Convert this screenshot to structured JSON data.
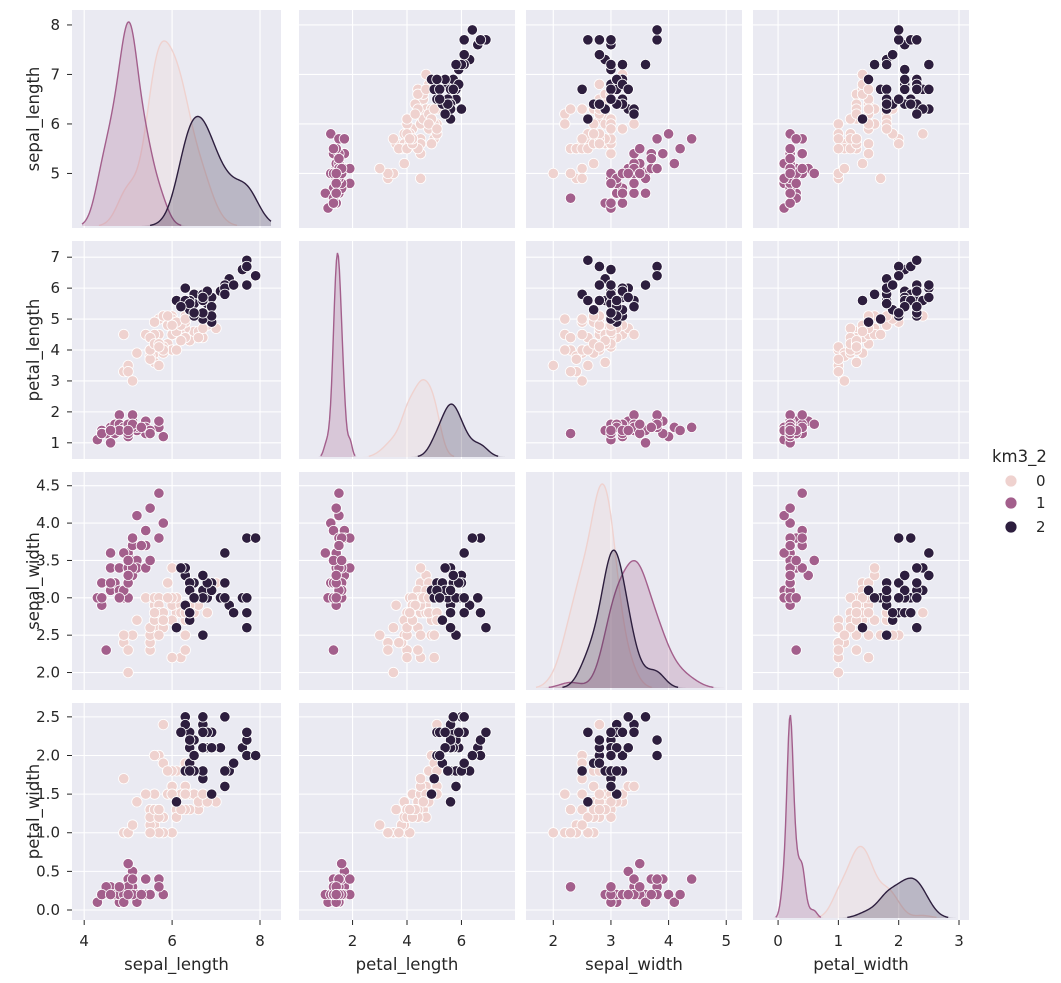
{
  "chart_data": {
    "type": "scatter",
    "kind": "pairplot",
    "variables": [
      "sepal_length",
      "petal_length",
      "sepal_width",
      "petal_width"
    ],
    "diag_kind": "kde",
    "grid": true,
    "legend": {
      "title": "km3_2",
      "placement": "right",
      "entries": [
        {
          "label": "0",
          "color": "#efd2cf"
        },
        {
          "label": "1",
          "color": "#a35f8c"
        },
        {
          "label": "2",
          "color": "#2d1e3e"
        }
      ]
    },
    "axes": {
      "sepal_length": {
        "label": "sepal_length",
        "lim": [
          3.95,
          8.25
        ],
        "ticks": [
          "4",
          "6",
          "8"
        ],
        "ylim": [
          4.1,
          8.1
        ],
        "yticks": [
          "5",
          "6",
          "7",
          "8"
        ]
      },
      "petal_length": {
        "label": "petal_length",
        "lim": [
          0.4,
          7.6
        ],
        "ticks": [
          "2",
          "4",
          "6"
        ],
        "ylim": [
          0.8,
          7.2
        ],
        "yticks": [
          "1",
          "2",
          "3",
          "4",
          "5",
          "6",
          "7"
        ]
      },
      "sepal_width": {
        "label": "sepal_width",
        "lim": [
          1.7,
          5.1
        ],
        "ticks": [
          "2",
          "3",
          "4",
          "5"
        ],
        "ylim": [
          1.9,
          4.55
        ],
        "yticks": [
          "2.0",
          "2.5",
          "3.0",
          "3.5",
          "4.0",
          "4.5"
        ]
      },
      "petal_width": {
        "label": "petal_width",
        "lim": [
          -0.25,
          3.0
        ],
        "ticks": [
          "0",
          "1",
          "2",
          "3"
        ],
        "ylim": [
          0.0,
          2.55
        ],
        "yticks": [
          "0.0",
          "0.5",
          "1.0",
          "1.5",
          "2.0",
          "2.5"
        ]
      }
    },
    "series": [
      {
        "name": "0",
        "columns": [
          "sepal_length",
          "petal_length",
          "sepal_width",
          "petal_width"
        ],
        "points": [
          [
            7.0,
            4.7,
            3.2,
            1.4
          ],
          [
            6.4,
            4.5,
            3.2,
            1.5
          ],
          [
            5.5,
            4.0,
            2.3,
            1.3
          ],
          [
            6.5,
            4.6,
            2.8,
            1.5
          ],
          [
            5.7,
            4.5,
            2.8,
            1.3
          ],
          [
            6.3,
            4.7,
            3.3,
            1.6
          ],
          [
            4.9,
            3.3,
            2.4,
            1.0
          ],
          [
            6.6,
            4.6,
            2.9,
            1.3
          ],
          [
            5.2,
            3.9,
            2.7,
            1.4
          ],
          [
            5.0,
            3.5,
            2.0,
            1.0
          ],
          [
            5.9,
            4.2,
            3.0,
            1.5
          ],
          [
            6.0,
            4.0,
            2.2,
            1.0
          ],
          [
            6.1,
            4.7,
            2.9,
            1.4
          ],
          [
            5.6,
            3.6,
            2.9,
            1.3
          ],
          [
            6.7,
            4.4,
            3.1,
            1.4
          ],
          [
            5.6,
            4.5,
            3.0,
            1.5
          ],
          [
            5.8,
            4.1,
            2.7,
            1.0
          ],
          [
            6.2,
            4.5,
            2.2,
            1.5
          ],
          [
            5.6,
            3.9,
            2.5,
            1.1
          ],
          [
            5.9,
            4.8,
            3.2,
            1.8
          ],
          [
            6.1,
            4.0,
            2.8,
            1.3
          ],
          [
            6.3,
            4.9,
            2.5,
            1.5
          ],
          [
            6.1,
            4.7,
            2.8,
            1.2
          ],
          [
            6.4,
            4.3,
            2.9,
            1.3
          ],
          [
            6.6,
            4.4,
            3.0,
            1.4
          ],
          [
            6.8,
            4.8,
            2.8,
            1.4
          ],
          [
            6.7,
            5.0,
            3.0,
            1.7
          ],
          [
            6.0,
            4.5,
            2.9,
            1.5
          ],
          [
            5.7,
            3.5,
            2.6,
            1.0
          ],
          [
            5.5,
            3.8,
            2.4,
            1.1
          ],
          [
            5.5,
            3.7,
            2.4,
            1.0
          ],
          [
            5.8,
            3.9,
            2.7,
            1.2
          ],
          [
            6.0,
            5.1,
            2.7,
            1.6
          ],
          [
            5.4,
            4.5,
            3.0,
            1.5
          ],
          [
            6.0,
            4.5,
            3.4,
            1.6
          ],
          [
            6.7,
            4.7,
            3.1,
            1.5
          ],
          [
            6.3,
            4.4,
            2.3,
            1.3
          ],
          [
            5.6,
            4.1,
            3.0,
            1.3
          ],
          [
            5.5,
            4.0,
            2.5,
            1.3
          ],
          [
            5.5,
            4.4,
            2.6,
            1.2
          ],
          [
            6.1,
            4.6,
            3.0,
            1.4
          ],
          [
            5.8,
            4.0,
            2.6,
            1.2
          ],
          [
            5.0,
            3.3,
            2.3,
            1.0
          ],
          [
            5.6,
            4.2,
            2.7,
            1.3
          ],
          [
            5.7,
            4.2,
            3.0,
            1.2
          ],
          [
            5.7,
            4.2,
            2.9,
            1.3
          ],
          [
            6.2,
            4.3,
            2.9,
            1.3
          ],
          [
            5.1,
            3.0,
            2.5,
            1.1
          ],
          [
            5.7,
            4.1,
            2.8,
            1.3
          ],
          [
            5.8,
            5.1,
            2.7,
            1.9
          ],
          [
            4.9,
            4.5,
            2.5,
            1.7
          ],
          [
            5.7,
            5.0,
            2.5,
            2.0
          ],
          [
            5.8,
            5.1,
            2.8,
            2.4
          ],
          [
            6.0,
            5.0,
            2.2,
            1.5
          ],
          [
            5.6,
            4.9,
            2.8,
            2.0
          ],
          [
            6.3,
            4.9,
            2.7,
            1.8
          ],
          [
            6.2,
            4.8,
            2.8,
            1.8
          ],
          [
            6.1,
            4.9,
            3.0,
            1.8
          ],
          [
            6.3,
            5.1,
            2.8,
            1.5
          ],
          [
            6.0,
            4.8,
            3.0,
            1.8
          ],
          [
            5.8,
            5.1,
            2.7,
            1.9
          ],
          [
            6.3,
            5.0,
            2.5,
            1.9
          ],
          [
            5.9,
            5.1,
            3.0,
            1.8
          ]
        ]
      },
      {
        "name": "1",
        "columns": [
          "sepal_length",
          "petal_length",
          "sepal_width",
          "petal_width"
        ],
        "points": [
          [
            5.1,
            1.4,
            3.5,
            0.2
          ],
          [
            4.9,
            1.4,
            3.0,
            0.2
          ],
          [
            4.7,
            1.3,
            3.2,
            0.2
          ],
          [
            4.6,
            1.5,
            3.1,
            0.2
          ],
          [
            5.0,
            1.4,
            3.6,
            0.2
          ],
          [
            5.4,
            1.7,
            3.9,
            0.4
          ],
          [
            4.6,
            1.4,
            3.4,
            0.3
          ],
          [
            5.0,
            1.5,
            3.4,
            0.2
          ],
          [
            4.4,
            1.4,
            2.9,
            0.2
          ],
          [
            4.9,
            1.5,
            3.1,
            0.1
          ],
          [
            5.4,
            1.5,
            3.7,
            0.2
          ],
          [
            4.8,
            1.6,
            3.4,
            0.2
          ],
          [
            4.8,
            1.4,
            3.0,
            0.1
          ],
          [
            4.3,
            1.1,
            3.0,
            0.1
          ],
          [
            5.8,
            1.2,
            4.0,
            0.2
          ],
          [
            5.7,
            1.5,
            4.4,
            0.4
          ],
          [
            5.4,
            1.3,
            3.9,
            0.4
          ],
          [
            5.1,
            1.4,
            3.5,
            0.3
          ],
          [
            5.7,
            1.7,
            3.8,
            0.3
          ],
          [
            5.1,
            1.5,
            3.8,
            0.3
          ],
          [
            5.4,
            1.7,
            3.4,
            0.2
          ],
          [
            5.1,
            1.5,
            3.7,
            0.4
          ],
          [
            4.6,
            1.0,
            3.6,
            0.2
          ],
          [
            5.1,
            1.7,
            3.3,
            0.5
          ],
          [
            4.8,
            1.9,
            3.4,
            0.2
          ],
          [
            5.0,
            1.6,
            3.0,
            0.2
          ],
          [
            5.0,
            1.6,
            3.4,
            0.4
          ],
          [
            5.2,
            1.5,
            3.5,
            0.2
          ],
          [
            5.2,
            1.4,
            3.4,
            0.2
          ],
          [
            4.7,
            1.6,
            3.2,
            0.2
          ],
          [
            4.8,
            1.6,
            3.1,
            0.2
          ],
          [
            5.4,
            1.5,
            3.4,
            0.4
          ],
          [
            5.2,
            1.5,
            4.1,
            0.1
          ],
          [
            5.5,
            1.4,
            4.2,
            0.2
          ],
          [
            4.9,
            1.5,
            3.1,
            0.2
          ],
          [
            5.0,
            1.2,
            3.2,
            0.2
          ],
          [
            5.5,
            1.3,
            3.5,
            0.2
          ],
          [
            4.9,
            1.4,
            3.6,
            0.1
          ],
          [
            4.4,
            1.3,
            3.0,
            0.2
          ],
          [
            5.1,
            1.5,
            3.4,
            0.2
          ],
          [
            5.0,
            1.3,
            3.5,
            0.3
          ],
          [
            4.5,
            1.3,
            2.3,
            0.3
          ],
          [
            4.4,
            1.3,
            3.2,
            0.2
          ],
          [
            5.0,
            1.6,
            3.5,
            0.6
          ],
          [
            5.1,
            1.9,
            3.8,
            0.4
          ],
          [
            4.8,
            1.4,
            3.0,
            0.3
          ],
          [
            5.1,
            1.6,
            3.8,
            0.2
          ],
          [
            4.6,
            1.4,
            3.2,
            0.2
          ],
          [
            5.3,
            1.5,
            3.7,
            0.2
          ],
          [
            5.0,
            1.4,
            3.3,
            0.2
          ]
        ]
      },
      {
        "name": "2",
        "columns": [
          "sepal_length",
          "petal_length",
          "sepal_width",
          "petal_width"
        ],
        "points": [
          [
            6.9,
            4.9,
            3.1,
            1.5
          ],
          [
            6.7,
            5.0,
            3.0,
            1.7
          ],
          [
            6.3,
            6.0,
            3.3,
            2.5
          ],
          [
            7.1,
            5.9,
            3.0,
            2.1
          ],
          [
            6.3,
            5.6,
            2.9,
            1.8
          ],
          [
            6.5,
            5.8,
            3.0,
            2.2
          ],
          [
            7.6,
            6.6,
            3.0,
            2.1
          ],
          [
            7.3,
            6.3,
            2.9,
            1.8
          ],
          [
            6.7,
            5.8,
            2.5,
            1.8
          ],
          [
            7.2,
            6.1,
            3.6,
            2.5
          ],
          [
            6.5,
            5.1,
            3.2,
            2.0
          ],
          [
            6.4,
            5.3,
            2.7,
            1.9
          ],
          [
            6.8,
            5.5,
            3.0,
            2.1
          ],
          [
            6.4,
            5.3,
            3.2,
            2.3
          ],
          [
            6.5,
            5.5,
            3.0,
            1.8
          ],
          [
            7.7,
            6.7,
            3.8,
            2.2
          ],
          [
            7.7,
            6.9,
            2.6,
            2.3
          ],
          [
            6.9,
            5.7,
            3.2,
            2.3
          ],
          [
            7.7,
            6.7,
            2.8,
            2.0
          ],
          [
            6.7,
            5.7,
            3.3,
            2.1
          ],
          [
            7.2,
            6.0,
            3.2,
            1.8
          ],
          [
            6.4,
            5.6,
            2.8,
            2.1
          ],
          [
            7.2,
            5.8,
            3.0,
            1.6
          ],
          [
            7.4,
            6.1,
            2.8,
            1.9
          ],
          [
            7.9,
            6.4,
            3.8,
            2.0
          ],
          [
            6.4,
            5.6,
            2.8,
            2.2
          ],
          [
            6.1,
            5.6,
            2.6,
            1.4
          ],
          [
            7.7,
            6.1,
            3.0,
            2.3
          ],
          [
            6.3,
            5.6,
            3.4,
            2.4
          ],
          [
            6.4,
            5.5,
            3.1,
            1.8
          ],
          [
            6.9,
            5.4,
            3.1,
            2.1
          ],
          [
            6.7,
            5.6,
            3.1,
            2.4
          ],
          [
            6.9,
            5.1,
            3.1,
            2.3
          ],
          [
            6.8,
            5.9,
            3.2,
            2.3
          ],
          [
            6.7,
            5.7,
            3.3,
            2.5
          ],
          [
            6.7,
            5.2,
            3.0,
            2.3
          ],
          [
            6.5,
            5.2,
            3.0,
            2.0
          ],
          [
            6.2,
            5.4,
            3.4,
            2.3
          ]
        ]
      }
    ]
  }
}
